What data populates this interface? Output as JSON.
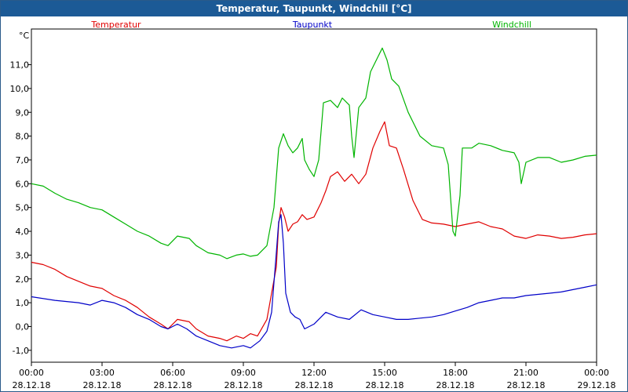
{
  "window": {
    "title": "Temperatur, Taupunkt, Windchill [°C]"
  },
  "chart_data": {
    "type": "line",
    "title": "Temperatur, Taupunkt, Windchill [°C]",
    "ylabel": "°C",
    "ylim": [
      -1.5,
      12.5
    ],
    "y_ticks": [
      "-1,0",
      "0,0",
      "1,0",
      "2,0",
      "3,0",
      "4,0",
      "5,0",
      "6,0",
      "7,0",
      "8,0",
      "9,0",
      "10,0",
      "11,0"
    ],
    "xlim": [
      0,
      24
    ],
    "x_ticks": [
      {
        "time": "00:00",
        "date": "28.12.18"
      },
      {
        "time": "03:00",
        "date": "28.12.18"
      },
      {
        "time": "06:00",
        "date": "28.12.18"
      },
      {
        "time": "09:00",
        "date": "28.12.18"
      },
      {
        "time": "12:00",
        "date": "28.12.18"
      },
      {
        "time": "15:00",
        "date": "28.12.18"
      },
      {
        "time": "18:00",
        "date": "28.12.18"
      },
      {
        "time": "21:00",
        "date": "28.12.18"
      },
      {
        "time": "00:00",
        "date": "29.12.18"
      }
    ],
    "grid": true,
    "legend_position": "top",
    "series": [
      {
        "name": "Temperatur",
        "color": "#e00000",
        "points": [
          [
            0,
            2.7
          ],
          [
            0.5,
            2.6
          ],
          [
            1,
            2.4
          ],
          [
            1.5,
            2.1
          ],
          [
            2,
            1.9
          ],
          [
            2.5,
            1.7
          ],
          [
            3,
            1.6
          ],
          [
            3.5,
            1.3
          ],
          [
            4,
            1.1
          ],
          [
            4.5,
            0.8
          ],
          [
            5,
            0.4
          ],
          [
            5.5,
            0.1
          ],
          [
            5.8,
            -0.1
          ],
          [
            6.2,
            0.3
          ],
          [
            6.7,
            0.2
          ],
          [
            7,
            -0.1
          ],
          [
            7.5,
            -0.4
          ],
          [
            8,
            -0.5
          ],
          [
            8.3,
            -0.6
          ],
          [
            8.7,
            -0.4
          ],
          [
            9,
            -0.5
          ],
          [
            9.3,
            -0.3
          ],
          [
            9.6,
            -0.4
          ],
          [
            10,
            0.3
          ],
          [
            10.4,
            2.5
          ],
          [
            10.5,
            4.3
          ],
          [
            10.6,
            5.0
          ],
          [
            10.75,
            4.6
          ],
          [
            10.9,
            4.0
          ],
          [
            11.1,
            4.3
          ],
          [
            11.3,
            4.4
          ],
          [
            11.5,
            4.7
          ],
          [
            11.7,
            4.5
          ],
          [
            12,
            4.6
          ],
          [
            12.3,
            5.2
          ],
          [
            12.5,
            5.7
          ],
          [
            12.7,
            6.3
          ],
          [
            13,
            6.5
          ],
          [
            13.3,
            6.1
          ],
          [
            13.6,
            6.4
          ],
          [
            13.9,
            6.0
          ],
          [
            14.2,
            6.4
          ],
          [
            14.5,
            7.5
          ],
          [
            14.8,
            8.2
          ],
          [
            15.0,
            8.6
          ],
          [
            15.2,
            7.6
          ],
          [
            15.5,
            7.5
          ],
          [
            15.8,
            6.6
          ],
          [
            16.2,
            5.3
          ],
          [
            16.6,
            4.5
          ],
          [
            17,
            4.35
          ],
          [
            17.5,
            4.3
          ],
          [
            18,
            4.2
          ],
          [
            18.5,
            4.3
          ],
          [
            19,
            4.4
          ],
          [
            19.5,
            4.2
          ],
          [
            20,
            4.1
          ],
          [
            20.5,
            3.8
          ],
          [
            21,
            3.7
          ],
          [
            21.5,
            3.85
          ],
          [
            22,
            3.8
          ],
          [
            22.5,
            3.7
          ],
          [
            23,
            3.75
          ],
          [
            23.5,
            3.85
          ],
          [
            24,
            3.9
          ]
        ]
      },
      {
        "name": "Taupunkt",
        "color": "#0000c8",
        "points": [
          [
            0,
            1.25
          ],
          [
            1,
            1.1
          ],
          [
            2,
            1.0
          ],
          [
            2.5,
            0.9
          ],
          [
            3,
            1.1
          ],
          [
            3.5,
            1.0
          ],
          [
            4,
            0.8
          ],
          [
            4.5,
            0.5
          ],
          [
            5,
            0.3
          ],
          [
            5.5,
            0.0
          ],
          [
            5.8,
            -0.1
          ],
          [
            6.2,
            0.1
          ],
          [
            6.6,
            -0.1
          ],
          [
            7,
            -0.4
          ],
          [
            7.5,
            -0.6
          ],
          [
            8,
            -0.8
          ],
          [
            8.5,
            -0.9
          ],
          [
            9,
            -0.8
          ],
          [
            9.3,
            -0.9
          ],
          [
            9.7,
            -0.6
          ],
          [
            10,
            -0.2
          ],
          [
            10.2,
            0.6
          ],
          [
            10.4,
            3.1
          ],
          [
            10.5,
            4.4
          ],
          [
            10.6,
            4.7
          ],
          [
            10.7,
            3.5
          ],
          [
            10.8,
            1.4
          ],
          [
            11,
            0.6
          ],
          [
            11.2,
            0.4
          ],
          [
            11.4,
            0.3
          ],
          [
            11.6,
            -0.1
          ],
          [
            12,
            0.1
          ],
          [
            12.5,
            0.6
          ],
          [
            13,
            0.4
          ],
          [
            13.5,
            0.3
          ],
          [
            14,
            0.7
          ],
          [
            14.5,
            0.5
          ],
          [
            15,
            0.4
          ],
          [
            15.5,
            0.3
          ],
          [
            16,
            0.3
          ],
          [
            16.5,
            0.35
          ],
          [
            17,
            0.4
          ],
          [
            17.5,
            0.5
          ],
          [
            18,
            0.65
          ],
          [
            18.5,
            0.8
          ],
          [
            19,
            1.0
          ],
          [
            19.5,
            1.1
          ],
          [
            20,
            1.2
          ],
          [
            20.5,
            1.2
          ],
          [
            21,
            1.3
          ],
          [
            21.5,
            1.35
          ],
          [
            22,
            1.4
          ],
          [
            22.5,
            1.45
          ],
          [
            23,
            1.55
          ],
          [
            23.5,
            1.65
          ],
          [
            24,
            1.75
          ]
        ]
      },
      {
        "name": "Windchill",
        "color": "#00b400",
        "points": [
          [
            0,
            6.0
          ],
          [
            0.5,
            5.9
          ],
          [
            1,
            5.6
          ],
          [
            1.5,
            5.35
          ],
          [
            2,
            5.2
          ],
          [
            2.5,
            5.0
          ],
          [
            3,
            4.9
          ],
          [
            3.5,
            4.6
          ],
          [
            4,
            4.3
          ],
          [
            4.5,
            4.0
          ],
          [
            5,
            3.8
          ],
          [
            5.5,
            3.5
          ],
          [
            5.8,
            3.4
          ],
          [
            6.2,
            3.8
          ],
          [
            6.7,
            3.7
          ],
          [
            7,
            3.4
          ],
          [
            7.5,
            3.1
          ],
          [
            8,
            3.0
          ],
          [
            8.3,
            2.85
          ],
          [
            8.7,
            3.0
          ],
          [
            9,
            3.05
          ],
          [
            9.3,
            2.95
          ],
          [
            9.6,
            3.0
          ],
          [
            10,
            3.4
          ],
          [
            10.3,
            5.0
          ],
          [
            10.5,
            7.5
          ],
          [
            10.7,
            8.1
          ],
          [
            10.9,
            7.6
          ],
          [
            11.1,
            7.3
          ],
          [
            11.3,
            7.5
          ],
          [
            11.5,
            7.9
          ],
          [
            11.6,
            7.0
          ],
          [
            11.8,
            6.6
          ],
          [
            12,
            6.3
          ],
          [
            12.2,
            7.0
          ],
          [
            12.4,
            9.4
          ],
          [
            12.7,
            9.5
          ],
          [
            13,
            9.2
          ],
          [
            13.2,
            9.6
          ],
          [
            13.5,
            9.3
          ],
          [
            13.6,
            8.0
          ],
          [
            13.7,
            7.1
          ],
          [
            13.9,
            9.2
          ],
          [
            14.2,
            9.6
          ],
          [
            14.4,
            10.7
          ],
          [
            14.7,
            11.3
          ],
          [
            14.9,
            11.7
          ],
          [
            15.1,
            11.2
          ],
          [
            15.3,
            10.4
          ],
          [
            15.6,
            10.1
          ],
          [
            16,
            9.0
          ],
          [
            16.5,
            8.0
          ],
          [
            17,
            7.6
          ],
          [
            17.5,
            7.5
          ],
          [
            17.7,
            6.8
          ],
          [
            17.9,
            4.0
          ],
          [
            18.0,
            3.8
          ],
          [
            18.2,
            5.5
          ],
          [
            18.3,
            7.5
          ],
          [
            18.7,
            7.5
          ],
          [
            19,
            7.7
          ],
          [
            19.5,
            7.6
          ],
          [
            20,
            7.4
          ],
          [
            20.5,
            7.3
          ],
          [
            20.7,
            6.9
          ],
          [
            20.8,
            6.0
          ],
          [
            21,
            6.9
          ],
          [
            21.5,
            7.1
          ],
          [
            22,
            7.1
          ],
          [
            22.5,
            6.9
          ],
          [
            23,
            7.0
          ],
          [
            23.5,
            7.15
          ],
          [
            24,
            7.2
          ]
        ]
      }
    ]
  }
}
